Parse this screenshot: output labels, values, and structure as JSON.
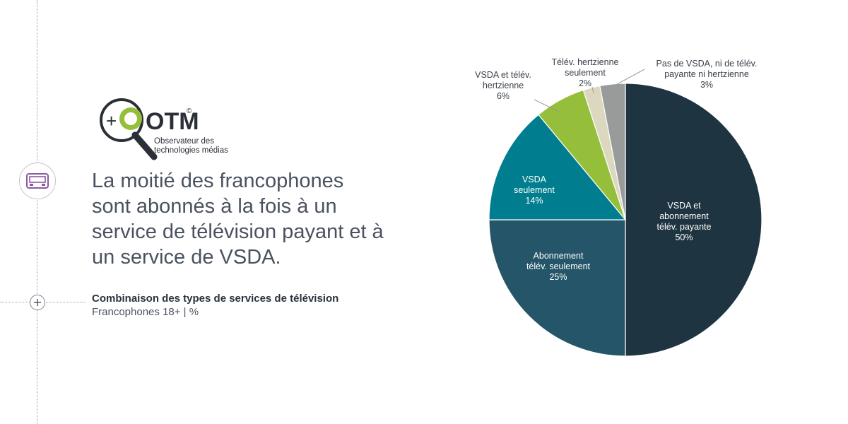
{
  "logo": {
    "mark": "OTM",
    "plus": "+",
    "registered": "©",
    "line1": "Observateur des",
    "line2": "technologies médias"
  },
  "headline": [
    "La moitié des francophones",
    "sont abonnés à la fois à un",
    "service de télévision payant et à",
    "un service de VSDA."
  ],
  "subtitle": {
    "title": "Combinaison des types de services de télévision",
    "population": "Francophones 18+ | %"
  },
  "icons": {
    "side_icon": "screen-icon",
    "plus_icon": "plus-icon"
  },
  "chart_data": {
    "type": "pie",
    "slices": [
      {
        "label": [
          "VSDA et",
          "abonnement",
          "télév. payante"
        ],
        "value": 50,
        "display": "50%",
        "color": "#1e3440",
        "label_color": "#ffffff"
      },
      {
        "label": [
          "Abonnement",
          "télév. seulement"
        ],
        "value": 25,
        "display": "25%",
        "color": "#245568",
        "label_color": "#ffffff"
      },
      {
        "label": [
          "VSDA",
          "seulement"
        ],
        "value": 14,
        "display": "14%",
        "color": "#007e8f",
        "label_color": "#ffffff"
      },
      {
        "label": [
          "VSDA et télév.",
          "hertzienne"
        ],
        "value": 6,
        "display": "6%",
        "color": "#95bf3b",
        "label_color": "#3a404a"
      },
      {
        "label": [
          "Télév. hertzienne",
          "seulement"
        ],
        "value": 2,
        "display": "2%",
        "color": "#dcd8c0",
        "label_color": "#3a404a"
      },
      {
        "label": [
          "Pas de VSDA, ni de télév.",
          "payante ni hertzienne"
        ],
        "value": 3,
        "display": "3%",
        "color": "#999a9a",
        "label_color": "#3a404a"
      }
    ]
  }
}
